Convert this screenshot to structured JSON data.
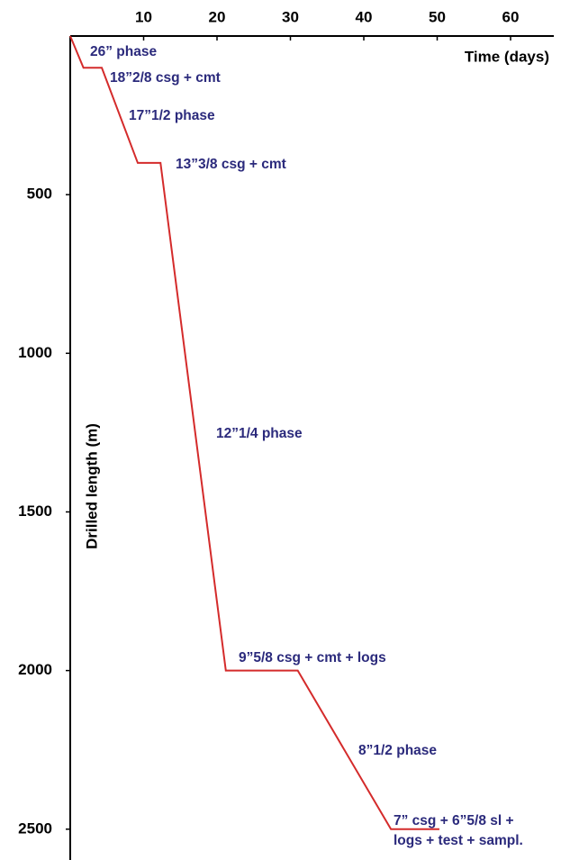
{
  "chart_data": {
    "type": "line",
    "x_label": "Time (days)",
    "y_label": "Drilled length (m)",
    "xlim": [
      0,
      66
    ],
    "ylim": [
      0,
      2600
    ],
    "xticks": [
      10,
      20,
      30,
      40,
      50,
      60
    ],
    "yticks": [
      500,
      1000,
      1500,
      2000,
      2500
    ],
    "y_inverted": true,
    "x_axis_position": "top",
    "series": [
      {
        "color": "#d42b2b",
        "x": [
          0,
          1.8,
          4.3,
          9.2,
          12.3,
          21.2,
          31.0,
          43.7,
          50.3
        ],
        "values": [
          0,
          100,
          100,
          400,
          400,
          2000,
          2000,
          2500,
          2500
        ]
      }
    ],
    "annotations": [
      "26” phase",
      "18”2/8 csg + cmt",
      "17”1/2 phase",
      "13”3/8 csg + cmt",
      "12”1/4 phase",
      "9”5/8 csg + cmt + logs",
      "8”1/2 phase",
      "7” csg + 6”5/8 sl +",
      "logs + test + sampl."
    ]
  }
}
